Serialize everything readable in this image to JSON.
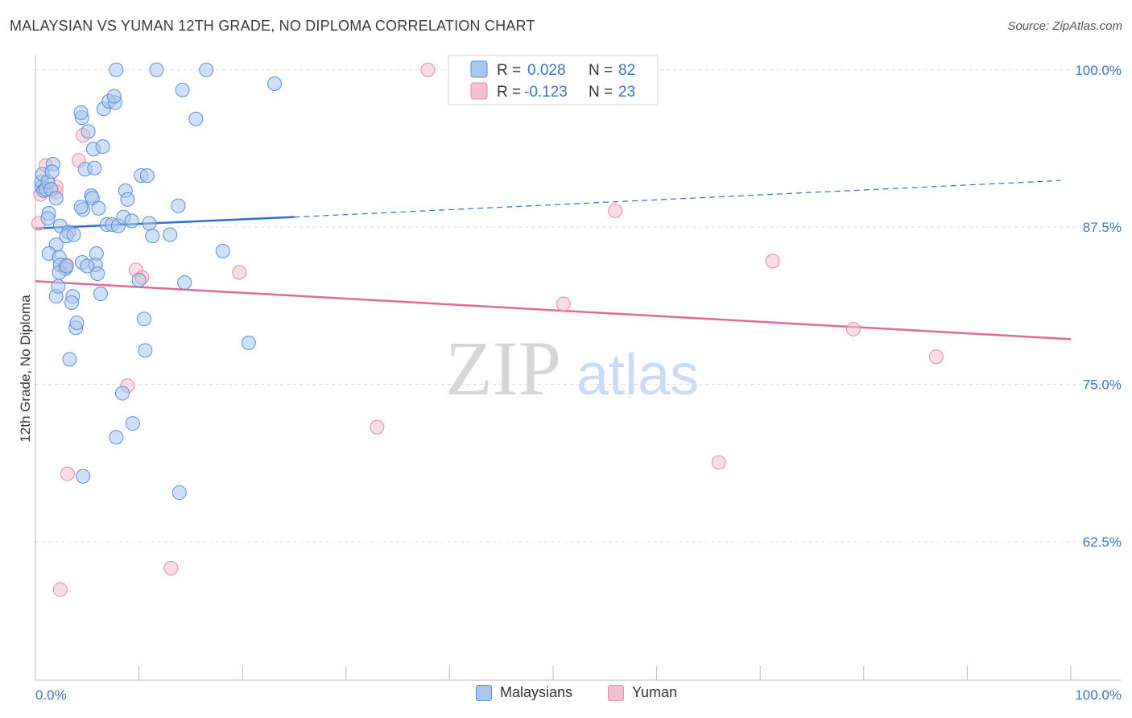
{
  "header": {
    "title": "MALAYSIAN VS YUMAN 12TH GRADE, NO DIPLOMA CORRELATION CHART",
    "source": "Source: ZipAtlas.com"
  },
  "watermark": {
    "zip": "ZIP",
    "atlas": "atlas"
  },
  "colors": {
    "blue_fill": "#a9c7ee",
    "blue_stroke": "#5b8fd6",
    "blue_line": "#2f6fcb",
    "pink_fill": "#f6bfd0",
    "pink_stroke": "#e68aa8",
    "pink_line": "#e0689a",
    "tick_text": "#3b74c8",
    "grid": "#dddddd"
  },
  "legend": {
    "rows": [
      {
        "r_label": "R =",
        "r_value": "0.028",
        "n_label": "N =",
        "n_value": "82"
      },
      {
        "r_label": "R =",
        "r_value": "-0.123",
        "n_label": "N =",
        "n_value": "23"
      }
    ]
  },
  "chart_data": {
    "type": "scatter",
    "title": "MALAYSIAN VS YUMAN 12TH GRADE, NO DIPLOMA CORRELATION CHART",
    "xlabel": "",
    "ylabel": "12th Grade, No Diploma",
    "xlim": [
      0,
      100
    ],
    "ylim": [
      51.5,
      101.2
    ],
    "x_tick_labels": [
      "0.0%",
      "100.0%"
    ],
    "y_ticks": [
      100.0,
      87.5,
      75.0,
      62.5
    ],
    "y_tick_labels": [
      "100.0%",
      "87.5%",
      "75.0%",
      "62.5%"
    ],
    "grid": true,
    "series": [
      {
        "name": "Malaysians",
        "r": 0.028,
        "n": 82,
        "trend": {
          "x": [
            0,
            25
          ],
          "y": [
            87.4,
            88.3
          ],
          "dashed_extension_to_x": 99,
          "dashed_end_y": 91.2
        },
        "points": [
          [
            0.6,
            90.7
          ],
          [
            0.6,
            91.1
          ],
          [
            0.8,
            90.4
          ],
          [
            0.7,
            91.7
          ],
          [
            1.0,
            90.5
          ],
          [
            1.2,
            91.1
          ],
          [
            1.5,
            90.5
          ],
          [
            1.7,
            92.5
          ],
          [
            1.6,
            91.9
          ],
          [
            2.0,
            89.8
          ],
          [
            1.3,
            88.6
          ],
          [
            1.2,
            88.2
          ],
          [
            2.4,
            87.6
          ],
          [
            3.2,
            87.1
          ],
          [
            3.0,
            86.8
          ],
          [
            3.7,
            86.9
          ],
          [
            2.0,
            86.1
          ],
          [
            1.3,
            85.4
          ],
          [
            2.3,
            85.1
          ],
          [
            2.4,
            84.5
          ],
          [
            2.9,
            84.2
          ],
          [
            2.3,
            83.9
          ],
          [
            3.0,
            84.4
          ],
          [
            2.0,
            82.0
          ],
          [
            3.6,
            82.0
          ],
          [
            3.5,
            81.5
          ],
          [
            3.9,
            79.5
          ],
          [
            4.0,
            79.9
          ],
          [
            3.3,
            77.0
          ],
          [
            4.6,
            88.9
          ],
          [
            4.4,
            89.1
          ],
          [
            5.4,
            90.0
          ],
          [
            5.5,
            89.8
          ],
          [
            6.1,
            89.0
          ],
          [
            4.8,
            92.1
          ],
          [
            5.7,
            92.2
          ],
          [
            5.1,
            95.1
          ],
          [
            5.6,
            93.7
          ],
          [
            4.5,
            96.2
          ],
          [
            4.4,
            96.6
          ],
          [
            6.5,
            93.9
          ],
          [
            6.6,
            96.9
          ],
          [
            7.1,
            97.5
          ],
          [
            7.7,
            97.4
          ],
          [
            7.6,
            97.9
          ],
          [
            7.8,
            100.0
          ],
          [
            11.7,
            100.0
          ],
          [
            16.5,
            100.0
          ],
          [
            14.2,
            98.4
          ],
          [
            15.5,
            96.1
          ],
          [
            23.1,
            98.9
          ],
          [
            8.7,
            90.4
          ],
          [
            8.9,
            89.7
          ],
          [
            10.2,
            91.6
          ],
          [
            10.8,
            91.6
          ],
          [
            13.8,
            89.2
          ],
          [
            6.9,
            87.7
          ],
          [
            7.4,
            87.7
          ],
          [
            8.0,
            87.6
          ],
          [
            8.5,
            88.3
          ],
          [
            9.3,
            88.0
          ],
          [
            11.0,
            87.8
          ],
          [
            11.3,
            86.8
          ],
          [
            13.0,
            86.9
          ],
          [
            5.9,
            85.4
          ],
          [
            4.5,
            84.7
          ],
          [
            5.8,
            84.5
          ],
          [
            18.1,
            85.6
          ],
          [
            10.0,
            83.3
          ],
          [
            14.4,
            83.1
          ],
          [
            6.3,
            82.2
          ],
          [
            10.5,
            80.2
          ],
          [
            10.6,
            77.7
          ],
          [
            20.6,
            78.3
          ],
          [
            8.4,
            74.3
          ],
          [
            9.4,
            71.9
          ],
          [
            7.8,
            70.8
          ],
          [
            4.6,
            67.7
          ],
          [
            13.9,
            66.4
          ],
          [
            5.0,
            84.4
          ],
          [
            6.0,
            83.8
          ],
          [
            2.2,
            82.8
          ]
        ]
      },
      {
        "name": "Yuman",
        "r": -0.123,
        "n": 23,
        "trend": {
          "x": [
            0,
            100
          ],
          "y": [
            83.2,
            78.6
          ]
        },
        "points": [
          [
            0.3,
            87.8
          ],
          [
            0.5,
            90.1
          ],
          [
            1.0,
            92.4
          ],
          [
            2.0,
            90.3
          ],
          [
            2.0,
            90.7
          ],
          [
            3.0,
            84.5
          ],
          [
            4.2,
            92.8
          ],
          [
            4.6,
            94.8
          ],
          [
            9.7,
            84.1
          ],
          [
            10.3,
            83.5
          ],
          [
            19.7,
            83.9
          ],
          [
            8.9,
            74.9
          ],
          [
            2.4,
            58.7
          ],
          [
            3.1,
            67.9
          ],
          [
            13.1,
            60.4
          ],
          [
            37.9,
            100.0
          ],
          [
            56.0,
            88.8
          ],
          [
            51.0,
            81.4
          ],
          [
            71.2,
            84.8
          ],
          [
            66.0,
            68.8
          ],
          [
            33.0,
            71.6
          ],
          [
            79.0,
            79.4
          ],
          [
            87.0,
            77.2
          ]
        ]
      }
    ]
  },
  "bottom_legend": {
    "items": [
      {
        "label": "Malaysians"
      },
      {
        "label": "Yuman"
      }
    ]
  }
}
